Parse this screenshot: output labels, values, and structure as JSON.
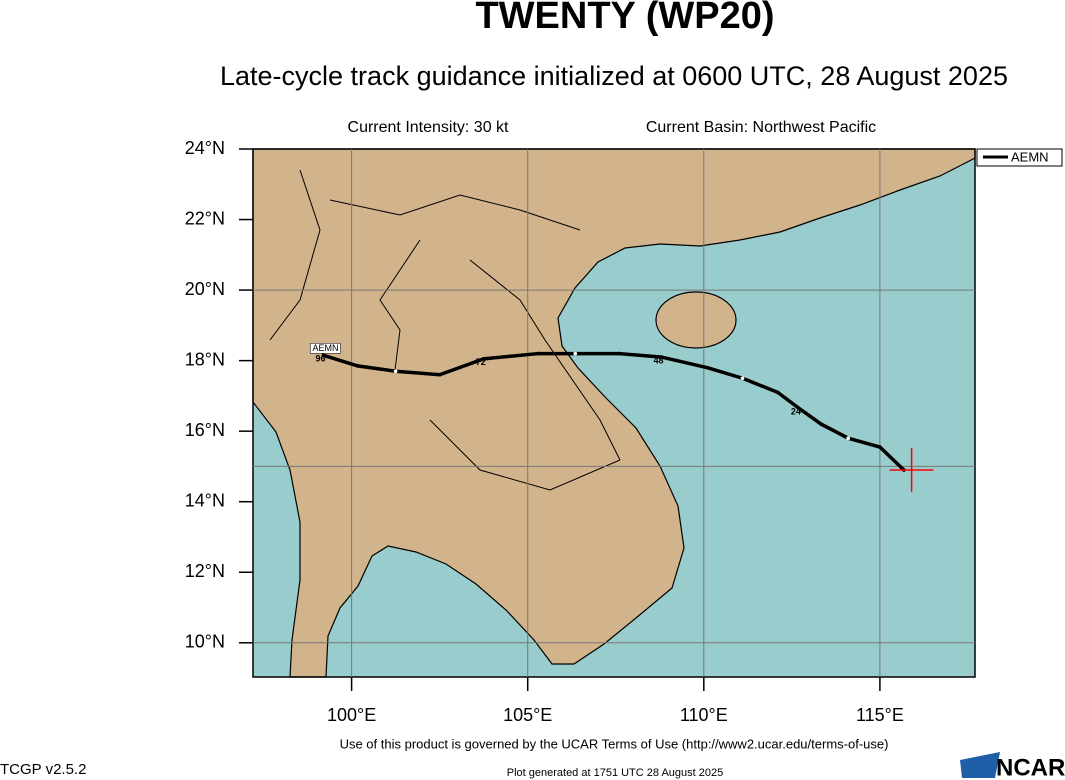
{
  "chart_data": {
    "type": "line",
    "title": "TWENTY (WP20)",
    "subtitle": "Late-cycle track guidance initialized at 0600 UTC, 28 August 2025",
    "intensity": "Current Intensity: 30 kt",
    "basin": "Current Basin: Northwest Pacific",
    "x": [
      115.68,
      115.0,
      114.1,
      113.33,
      112.7,
      112.1,
      111.1,
      110.1,
      108.8,
      107.6,
      106.35,
      105.3,
      103.75,
      102.5,
      101.25,
      100.17,
      99.2
    ],
    "series": [
      {
        "name": "AEMN",
        "color": "#000000",
        "values": [
          14.9,
          15.55,
          15.8,
          16.2,
          16.65,
          17.1,
          17.5,
          17.8,
          18.1,
          18.2,
          18.2,
          18.2,
          18.05,
          17.6,
          17.7,
          17.85,
          18.15
        ],
        "point_labels": [
          null,
          null,
          null,
          null,
          "24",
          null,
          null,
          null,
          "48",
          null,
          null,
          null,
          "72",
          null,
          null,
          null,
          "96"
        ]
      }
    ],
    "current_position": {
      "lon": 115.9,
      "lat": 14.9,
      "color": "#ff0000"
    },
    "xlim": [
      97.2,
      117.7
    ],
    "ylim": [
      9.03,
      24
    ],
    "xticks": [
      {
        "value": 100,
        "label": "100°E"
      },
      {
        "value": 105,
        "label": "105°E"
      },
      {
        "value": 110,
        "label": "110°E"
      },
      {
        "value": 115,
        "label": "115°E"
      }
    ],
    "yticks": [
      {
        "value": 10,
        "label": "10°N"
      },
      {
        "value": 12,
        "label": "12°N"
      },
      {
        "value": 14,
        "label": "14°N"
      },
      {
        "value": 16,
        "label": "16°N"
      },
      {
        "value": 18,
        "label": "18°N"
      },
      {
        "value": 20,
        "label": "20°N"
      },
      {
        "value": 22,
        "label": "22°N"
      },
      {
        "value": 24,
        "label": "24°N"
      }
    ],
    "xgrid": [
      100,
      105,
      110,
      115
    ],
    "ygrid": [
      10,
      15,
      20
    ],
    "legend": "upper right"
  },
  "footer": {
    "terms": "Use of this product is governed by the UCAR Terms of Use (http://www2.ucar.edu/terms-of-use)",
    "version": "TCGP v2.5.2",
    "generated": "Plot generated at 1751 UTC  28 August 2025",
    "logo": "NCAR"
  }
}
